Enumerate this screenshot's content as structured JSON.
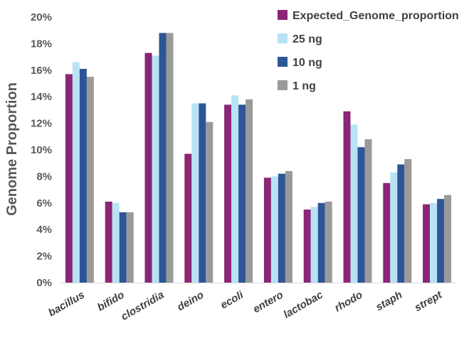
{
  "chart_data": {
    "type": "bar",
    "title": "",
    "xlabel": "",
    "ylabel": "Genome Proportion",
    "ylim": [
      0,
      20
    ],
    "yticks": [
      "0%",
      "2%",
      "4%",
      "6%",
      "8%",
      "10%",
      "12%",
      "14%",
      "16%",
      "18%",
      "20%"
    ],
    "grid": false,
    "legend_position": "top-right",
    "categories": [
      "bacillus",
      "bifido",
      "clostridia",
      "deino",
      "ecoli",
      "entero",
      "lactobac",
      "rhodo",
      "staph",
      "strept"
    ],
    "series": [
      {
        "name": "Expected_Genome_proportion",
        "color": "#8B2575",
        "values": [
          15.7,
          6.1,
          17.3,
          9.7,
          13.4,
          7.9,
          5.5,
          12.9,
          7.5,
          5.9
        ]
      },
      {
        "name": "25 ng",
        "color": "#B7E3F4",
        "values": [
          16.6,
          6.0,
          17.1,
          13.5,
          14.1,
          8.0,
          5.7,
          11.9,
          8.3,
          6.0
        ]
      },
      {
        "name": "10 ng",
        "color": "#2D5597",
        "values": [
          16.1,
          5.3,
          18.8,
          13.5,
          13.4,
          8.2,
          6.0,
          10.2,
          8.9,
          6.3
        ]
      },
      {
        "name": "1 ng",
        "color": "#9A9A9A",
        "values": [
          15.5,
          5.3,
          18.8,
          12.1,
          13.8,
          8.4,
          6.1,
          10.8,
          9.3,
          6.6
        ]
      }
    ]
  }
}
